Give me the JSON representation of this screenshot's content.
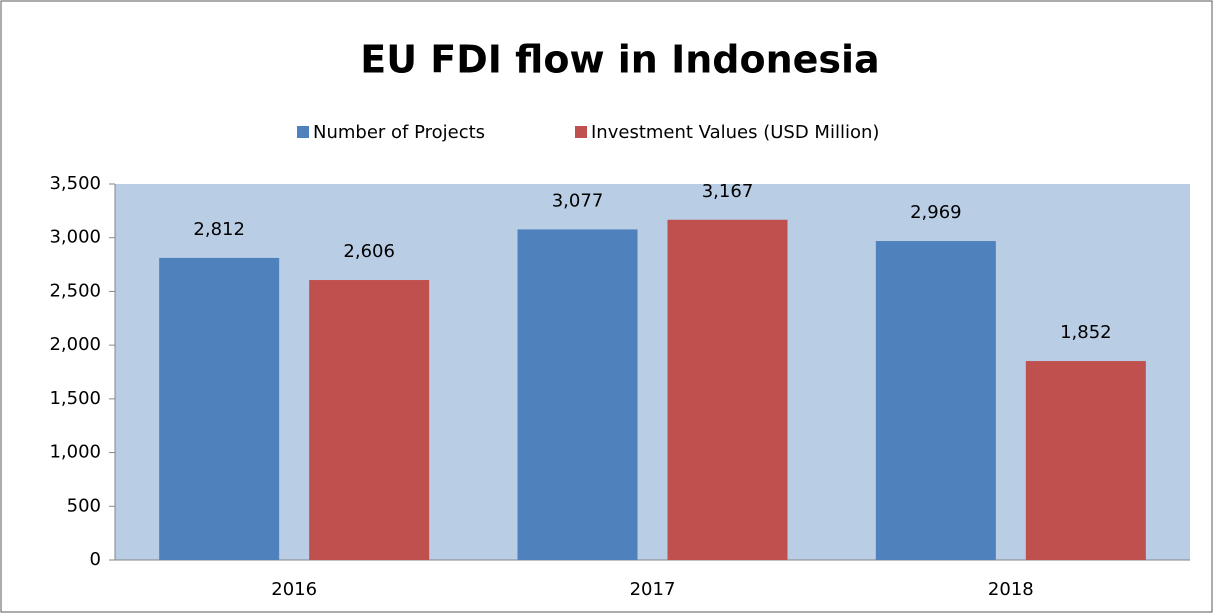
{
  "chart_data": {
    "type": "bar",
    "title": "EU FDI flow in Indonesia",
    "categories": [
      "2016",
      "2017",
      "2018"
    ],
    "series": [
      {
        "name": "Number of Projects",
        "color": "#4f81bd",
        "values": [
          2812,
          3077,
          2969
        ],
        "value_labels": [
          "2,812",
          "3,077",
          "2,969"
        ]
      },
      {
        "name": "Investment Values (USD Million)",
        "color": "#c0504d",
        "values": [
          2606,
          3167,
          1852
        ],
        "value_labels": [
          "2,606",
          "3,167",
          "1,852"
        ]
      }
    ],
    "ylim": [
      0,
      3500
    ],
    "yticks": [
      0,
      500,
      {
        "value": 1000,
        "label": "1,000"
      },
      {
        "value": 1500,
        "label": "1,500"
      },
      {
        "value": 2000,
        "label": "2,000"
      },
      {
        "value": 2500,
        "label": "2,500"
      },
      {
        "value": 3000,
        "label": "3,000"
      },
      {
        "value": 3500,
        "label": "3,500"
      }
    ],
    "legend": "top",
    "plot_background": "#b9cde5"
  }
}
